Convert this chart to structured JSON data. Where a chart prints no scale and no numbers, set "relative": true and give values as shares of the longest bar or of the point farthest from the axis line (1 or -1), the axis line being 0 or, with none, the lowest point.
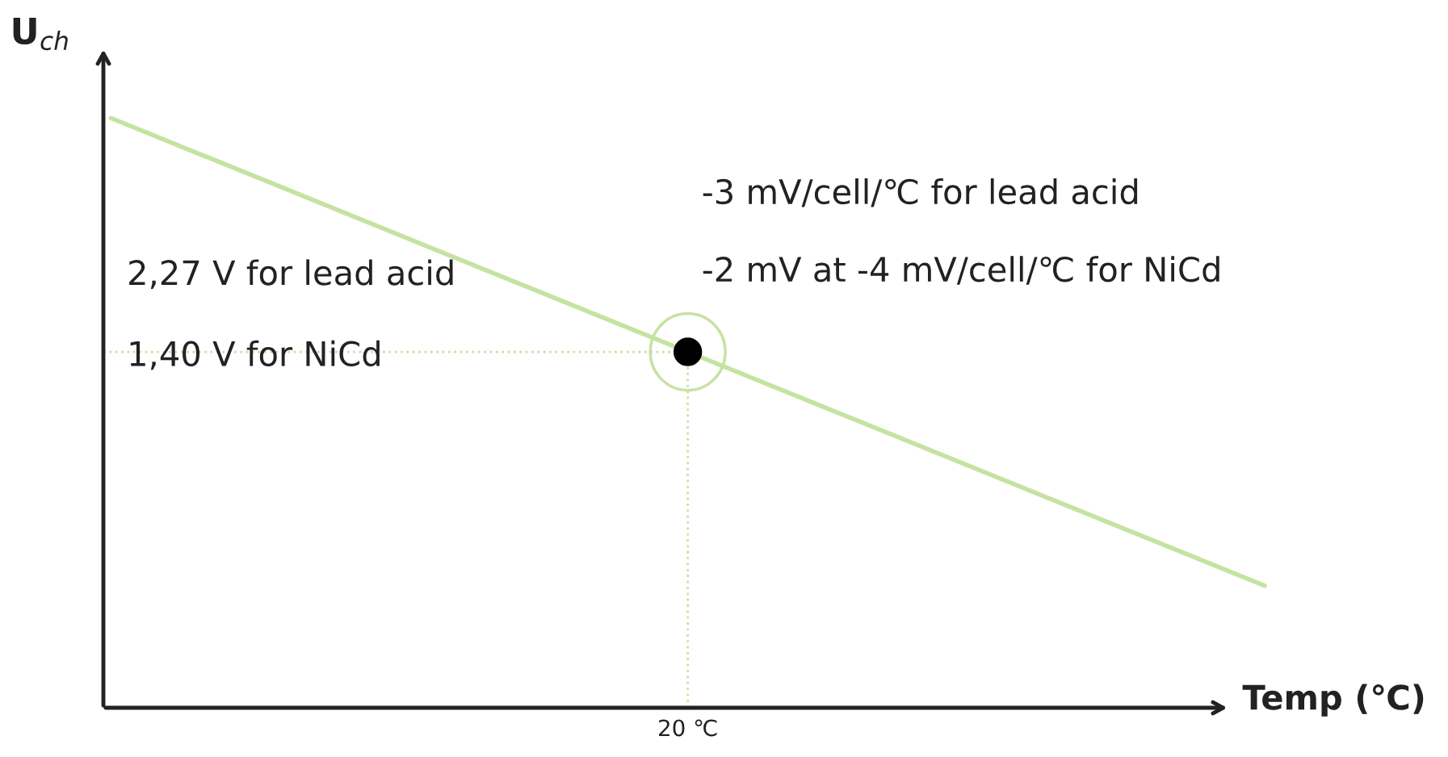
{
  "chart_data": {
    "type": "line",
    "relative": true,
    "xlabel": "Temp (℃)",
    "ylabel": "U$_{ch}$",
    "categories": [
      null,
      null,
      null
    ],
    "series": [
      {
        "color": "#c5e3a0",
        "values": [
          1,
          0.6035,
          0.207
        ]
      }
    ],
    "ref_lines": [
      {
        "axis": "y",
        "value": 0.6035,
        "color": "#c5e3a0",
        "line_style": "dotted"
      }
    ],
    "annotations": [
      "2,27 V for lead acid",
      "1,40 V for NiCd",
      "-3 mV/cell/℃ for lead acid",
      "-2 mV at -4 mV/cell/℃ for NiCd",
      "20 ℃"
    ],
    "legend": false
  }
}
